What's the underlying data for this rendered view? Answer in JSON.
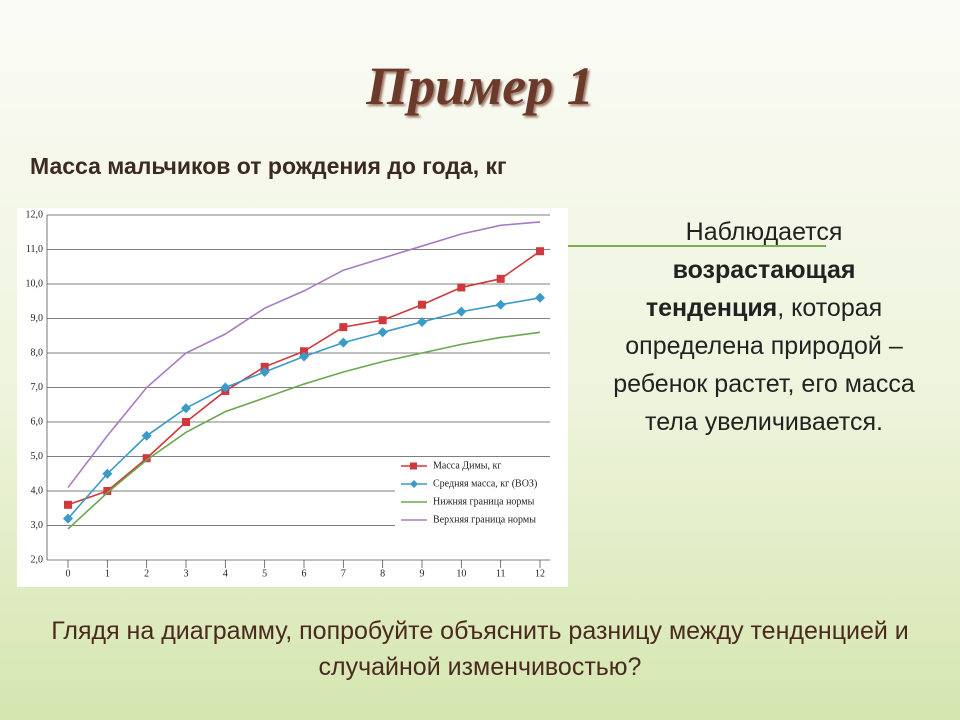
{
  "slide_title": "Пример 1",
  "subtitle": "Масса мальчиков от рождения до года, кг",
  "note_parts": [
    {
      "text": "Наблюдается",
      "bold": false
    },
    {
      "text": "возрастающая тенденция",
      "bold": true
    },
    {
      "text": ", которая определена природой – ребенок растет, его масса тела увеличивается.",
      "bold": false
    }
  ],
  "question": "Глядя на диаграмму, попробуйте объяснить разницу между тенденцией и случайной изменчивостью?",
  "chart_data": {
    "type": "line",
    "x": [
      0,
      1,
      2,
      3,
      4,
      5,
      6,
      7,
      8,
      9,
      10,
      11,
      12
    ],
    "xlim": [
      0,
      12
    ],
    "xticks": [
      0,
      1,
      2,
      3,
      4,
      5,
      6,
      7,
      8,
      9,
      10,
      11,
      12
    ],
    "ylim": [
      2,
      12
    ],
    "yticks": [
      {
        "value": 2,
        "label": "2,0"
      },
      {
        "value": 3,
        "label": "3,0"
      },
      {
        "value": 4,
        "label": "4,0"
      },
      {
        "value": 5,
        "label": "5,0"
      },
      {
        "value": 6,
        "label": "6,0"
      },
      {
        "value": 7,
        "label": "7,0"
      },
      {
        "value": 8,
        "label": "8,0"
      },
      {
        "value": 9,
        "label": "9,0"
      },
      {
        "value": 10,
        "label": "10,0"
      },
      {
        "value": 11,
        "label": "11,0"
      },
      {
        "value": 12,
        "label": "12,0"
      }
    ],
    "grid": true,
    "legend": "lower-right",
    "series": [
      {
        "name": "Масса Димы, кг",
        "color": "#d0393b",
        "marker": "square",
        "values": [
          3.6,
          4.0,
          4.95,
          6.0,
          6.9,
          7.6,
          8.05,
          8.75,
          8.95,
          9.4,
          9.9,
          10.15,
          10.95
        ]
      },
      {
        "name": "Средняя масса, кг (ВОЗ)",
        "color": "#3a9ac9",
        "marker": "diamond",
        "values": [
          3.2,
          4.5,
          5.6,
          6.4,
          7.0,
          7.45,
          7.9,
          8.3,
          8.6,
          8.9,
          9.2,
          9.4,
          9.6
        ]
      },
      {
        "name": "Нижняя граница нормы",
        "color": "#6aa84f",
        "marker": "none",
        "values": [
          2.9,
          3.95,
          4.9,
          5.7,
          6.3,
          6.7,
          7.1,
          7.45,
          7.75,
          8.0,
          8.25,
          8.45,
          8.6
        ]
      },
      {
        "name": "Верхняя граница нормы",
        "color": "#a77bc4",
        "marker": "none",
        "values": [
          4.1,
          5.6,
          7.0,
          8.0,
          8.55,
          9.3,
          9.8,
          10.4,
          10.75,
          11.1,
          11.45,
          11.7,
          11.8
        ]
      }
    ]
  }
}
